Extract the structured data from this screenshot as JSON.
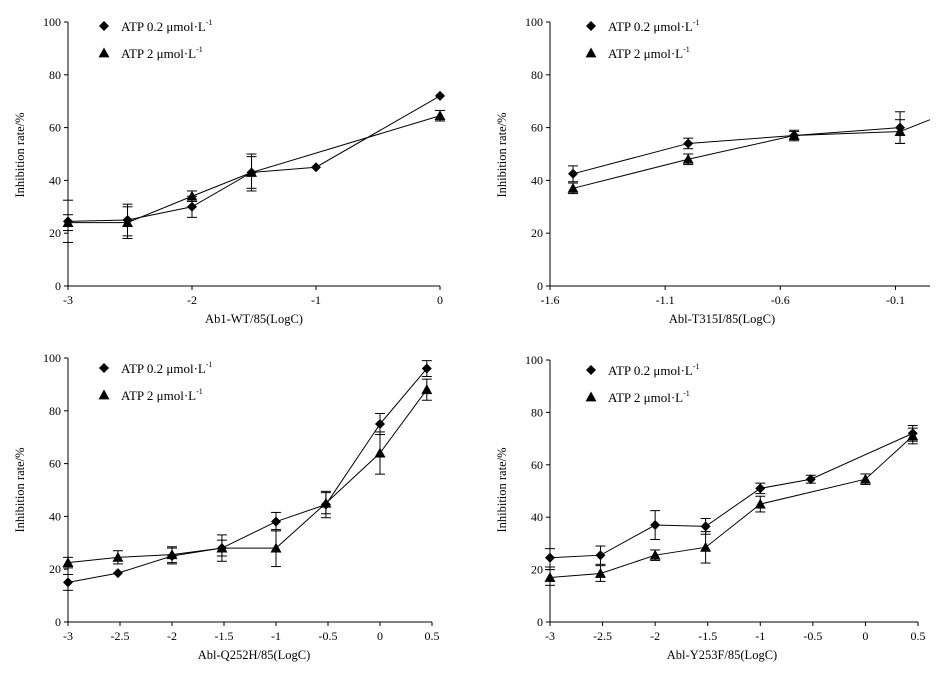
{
  "chart_data": [
    {
      "id": "p1",
      "type": "line",
      "xlabel": "Ab1-WT/85(LogC)",
      "ylabel": "Inhibition rate/%",
      "xlim": [
        -3,
        0
      ],
      "ylim": [
        0,
        100
      ],
      "xticks": [
        -3,
        -2,
        -1,
        0
      ],
      "xtick_labels": [
        "-3",
        "-2",
        "-1",
        "0"
      ],
      "yticks": [
        0,
        20,
        40,
        60,
        80,
        100
      ],
      "ytick_labels": [
        "0",
        "20",
        "40",
        "60",
        "80",
        "100"
      ],
      "legend_position": "top-left",
      "series": [
        {
          "name": "ATP 0.2 μmol·L",
          "name_sup": "-1",
          "marker": "diamond",
          "x": [
            -3,
            -2.52,
            -2,
            -1.52,
            -1,
            0
          ],
          "y": [
            24.5,
            25,
            30,
            43,
            45,
            72
          ],
          "err": [
            8,
            6,
            4,
            6,
            0,
            0
          ]
        },
        {
          "name": "ATP 2 μmol·L",
          "name_sup": "-1",
          "marker": "triangle",
          "x": [
            -3,
            -2.52,
            -2,
            -1.52,
            0
          ],
          "y": [
            24,
            24,
            34,
            43,
            64.5
          ],
          "err": [
            3,
            6,
            2,
            7,
            2
          ]
        }
      ]
    },
    {
      "id": "p2",
      "type": "line",
      "xlabel": "Abl-T315I/85(LogC)",
      "ylabel": "Inhibition rate/%",
      "xlim": [
        -1.6,
        0.05
      ],
      "ylim": [
        0,
        100
      ],
      "xticks": [
        -1.6,
        -1.1,
        -0.6,
        -0.1
      ],
      "xtick_labels": [
        "-1.6",
        "-1.1",
        "-0.6",
        "-0.1"
      ],
      "yticks": [
        0,
        20,
        40,
        60,
        80,
        100
      ],
      "ytick_labels": [
        "0",
        "20",
        "40",
        "60",
        "80",
        "100"
      ],
      "legend_position": "top-left",
      "series": [
        {
          "name": "ATP 0.2 μmol·L",
          "name_sup": "-1",
          "marker": "diamond",
          "x": [
            -1.5,
            -1.0,
            -0.54,
            -0.08
          ],
          "y": [
            42.5,
            54,
            57,
            60
          ],
          "err": [
            3,
            2,
            2,
            6
          ]
        },
        {
          "name": "ATP 2 μmol·L",
          "name_sup": "-1",
          "marker": "triangle",
          "x": [
            -1.5,
            -1.0,
            -0.54,
            -0.08,
            0.05
          ],
          "y": [
            37,
            48,
            57,
            58.5,
            63
          ],
          "err": [
            2,
            2,
            1.5,
            4.5,
            0
          ],
          "marker_mask": [
            true,
            true,
            true,
            true,
            false
          ]
        }
      ]
    },
    {
      "id": "p3",
      "type": "line",
      "xlabel": "Abl-Q252H/85(LogC)",
      "ylabel": "Inhibition rate/%",
      "xlim": [
        -3,
        0.5
      ],
      "ylim": [
        0,
        100
      ],
      "xticks": [
        -3,
        -2.5,
        -2,
        -1.5,
        -1,
        -0.5,
        0,
        0.5
      ],
      "xtick_labels": [
        "-3",
        "-2.5",
        "-2",
        "-1.5",
        "-1",
        "-0.5",
        "0",
        "0.5"
      ],
      "yticks": [
        0,
        20,
        40,
        60,
        80,
        100
      ],
      "ytick_labels": [
        "0",
        "20",
        "40",
        "60",
        "80",
        "100"
      ],
      "legend_position": "top-left",
      "series": [
        {
          "name": "ATP 0.2 μmol·L",
          "name_sup": "-1",
          "marker": "diamond",
          "x": [
            -3,
            -2.52,
            -2,
            -1.52,
            -1,
            -0.52,
            0,
            0.45
          ],
          "y": [
            15,
            18.5,
            25,
            28,
            38,
            44.5,
            75,
            96
          ],
          "err": [
            3,
            0,
            3,
            5,
            3.5,
            5,
            4,
            3
          ]
        },
        {
          "name": "ATP 2 μmol·L",
          "name_sup": "-1",
          "marker": "triangle",
          "x": [
            -3,
            -2.52,
            -2,
            -1.52,
            -1,
            -0.52,
            0,
            0.45
          ],
          "y": [
            22.5,
            24.5,
            25.5,
            28,
            28,
            45,
            64,
            88
          ],
          "err": [
            2,
            2.5,
            3,
            3,
            7,
            4,
            8,
            4
          ]
        }
      ]
    },
    {
      "id": "p4",
      "type": "line",
      "xlabel": "Abl-Y253F/85(LogC)",
      "ylabel": "Inhibition rate/%",
      "xlim": [
        -3,
        0.5
      ],
      "ylim": [
        0,
        100
      ],
      "xticks": [
        -3,
        -2.5,
        -2,
        -1.5,
        -1,
        -0.5,
        0,
        0.5
      ],
      "xtick_labels": [
        "-3",
        "-2.5",
        "-2",
        "-1.5",
        "-1",
        "-0.5",
        "0",
        "0.5"
      ],
      "yticks": [
        0,
        20,
        40,
        60,
        80,
        100
      ],
      "ytick_labels": [
        "0",
        "20",
        "40",
        "60",
        "80",
        "100"
      ],
      "legend_position": "top-left",
      "series": [
        {
          "name": "ATP 0.2 μmol·L",
          "name_sup": "-1",
          "marker": "diamond",
          "x": [
            -3,
            -2.52,
            -2,
            -1.52,
            -1,
            -0.52,
            0.45
          ],
          "y": [
            24.5,
            25.5,
            37,
            36.5,
            51,
            54.5,
            72
          ],
          "err": [
            3.5,
            3.5,
            5.5,
            3,
            2,
            1.5,
            3
          ]
        },
        {
          "name": "ATP 2 μmol·L",
          "name_sup": "-1",
          "marker": "triangle",
          "x": [
            -3,
            -2.52,
            -2,
            -1.52,
            -1,
            0,
            0.45
          ],
          "y": [
            17,
            18.5,
            25.5,
            28.5,
            45,
            54.5,
            71
          ],
          "err": [
            3,
            3,
            2,
            6,
            3,
            2,
            3
          ]
        }
      ]
    }
  ]
}
